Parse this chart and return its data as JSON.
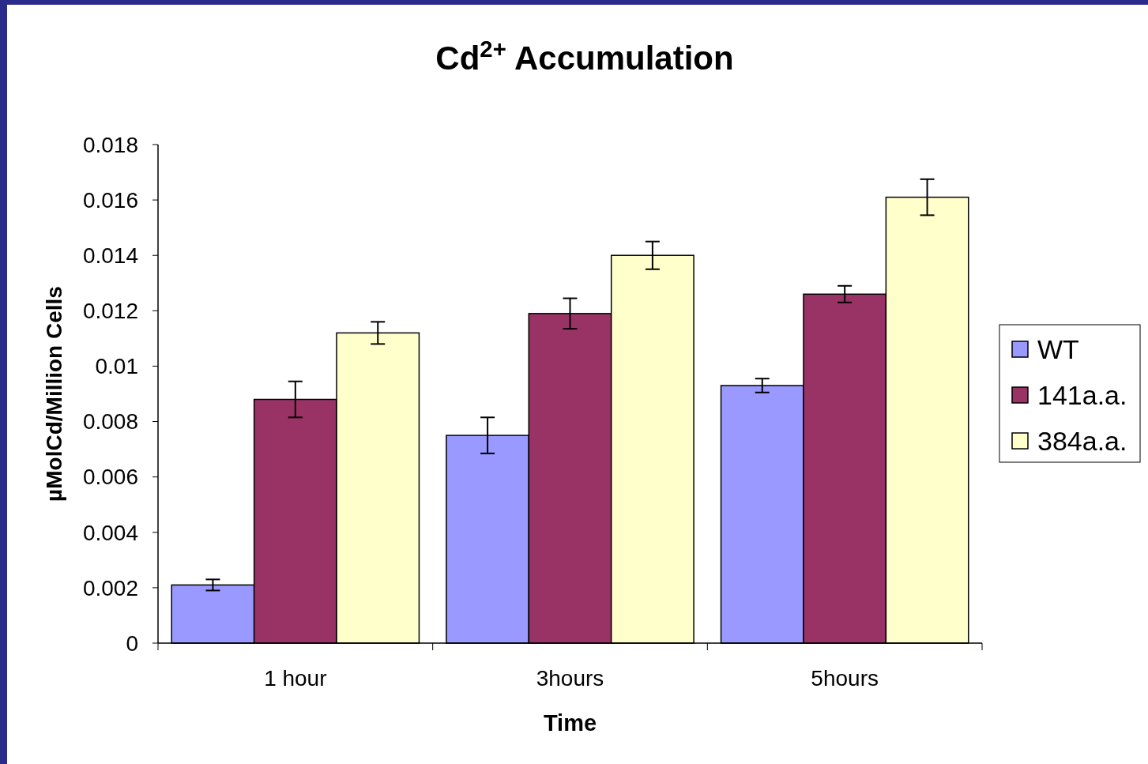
{
  "chart_data": {
    "type": "bar",
    "title": "Cd$^{2+}$ Accumulation",
    "xlabel": "Time",
    "ylabel": "µMolCd/Million Cells",
    "categories": [
      "1 hour",
      "3hours",
      "5hours"
    ],
    "series": [
      {
        "name": "WT",
        "color": "#9999ff",
        "values": [
          0.0021,
          0.0075,
          0.0093
        ],
        "errors": [
          0.0002,
          0.00065,
          0.00025
        ]
      },
      {
        "name": "141a.a.",
        "color": "#993366",
        "values": [
          0.0088,
          0.0119,
          0.0126
        ],
        "errors": [
          0.00065,
          0.00055,
          0.0003
        ]
      },
      {
        "name": "384a.a.",
        "color": "#ffffcc",
        "values": [
          0.0112,
          0.014,
          0.0161
        ],
        "errors": [
          0.0004,
          0.0005,
          0.00065
        ]
      }
    ],
    "ylim": [
      0,
      0.018
    ],
    "yticks": [
      0,
      0.002,
      0.004,
      0.006,
      0.008,
      0.01,
      0.012,
      0.014,
      0.016,
      0.018
    ],
    "grid": false,
    "legend": "right"
  }
}
